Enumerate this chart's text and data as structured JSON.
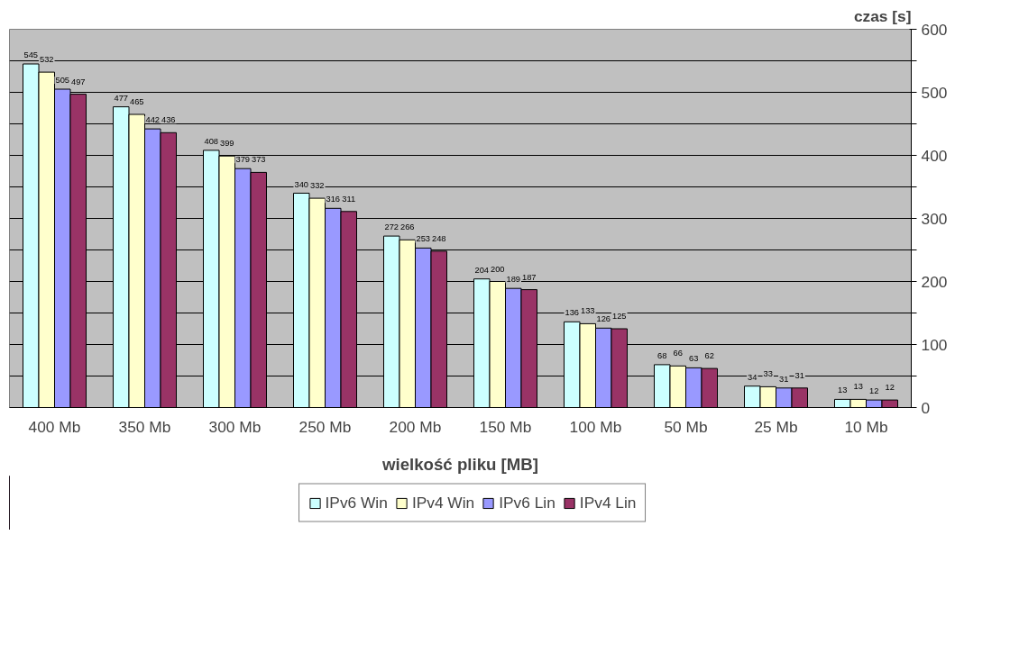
{
  "chart_data": {
    "type": "bar",
    "xlabel": "wielkość pliku [MB]",
    "ylabel": "czas [s]",
    "categories": [
      "400 Mb",
      "350 Mb",
      "300 Mb",
      "250 Mb",
      "200 Mb",
      "150 Mb",
      "100 Mb",
      "50 Mb",
      "25 Mb",
      "10 Mb"
    ],
    "series": [
      {
        "name": "IPv6 Win",
        "color": "#ccffff",
        "values": [
          545,
          477,
          408,
          340,
          272,
          204,
          136,
          68,
          34,
          13
        ]
      },
      {
        "name": "IPv4 Win",
        "color": "#ffffcc",
        "values": [
          532,
          465,
          399,
          332,
          266,
          200,
          133,
          66,
          33,
          13
        ]
      },
      {
        "name": "IPv6 Lin",
        "color": "#9999ff",
        "values": [
          505,
          442,
          379,
          316,
          253,
          189,
          126,
          63,
          31,
          12
        ]
      },
      {
        "name": "IPv4 Lin",
        "color": "#993366",
        "values": [
          497,
          436,
          373,
          311,
          248,
          187,
          125,
          62,
          31,
          12
        ]
      }
    ],
    "ylim": [
      0,
      600
    ],
    "yticks": [
      0,
      {
        "value": 50,
        "label": null
      },
      100,
      {
        "value": 150,
        "label": null
      },
      200,
      {
        "value": 250,
        "label": null
      },
      300,
      {
        "value": 350,
        "label": null
      },
      400,
      {
        "value": 450,
        "label": null
      },
      500,
      {
        "value": 550,
        "label": null
      },
      600
    ],
    "grid": "y",
    "legend": "bottom",
    "data_labels": true
  }
}
